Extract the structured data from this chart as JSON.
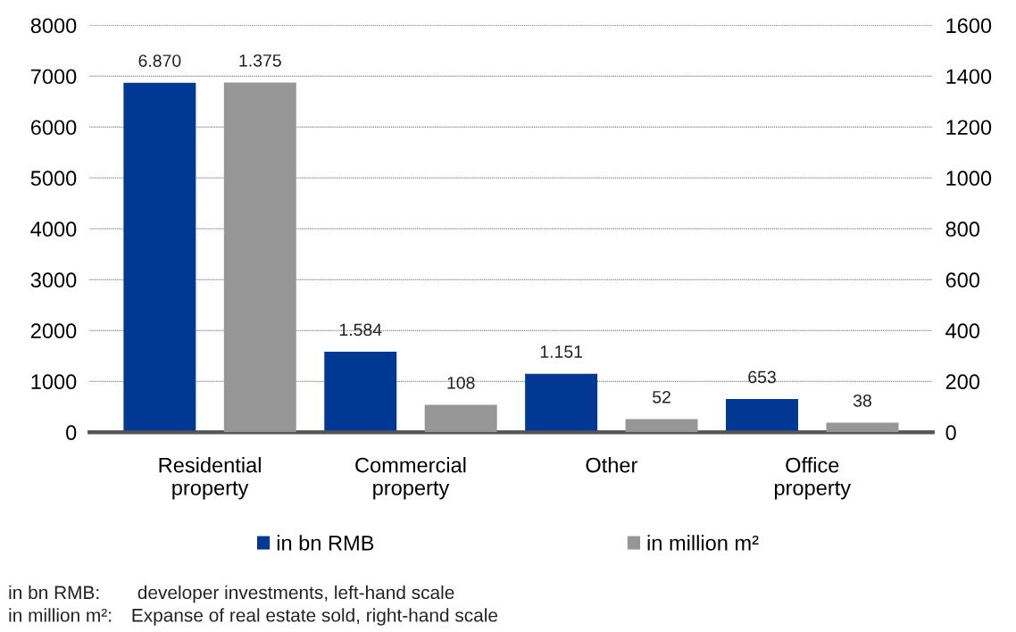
{
  "chart_data": {
    "type": "bar",
    "categories": [
      "Residential\nproperty",
      "Commercial\nproperty",
      "Other",
      "Office\nproperty"
    ],
    "series": [
      {
        "name": "in bn RMB",
        "color": "#003893",
        "values": [
          6870,
          1584,
          1151,
          653
        ],
        "value_labels": [
          "6.870",
          "1.584",
          "1.151",
          "653"
        ]
      },
      {
        "name": "in million m²",
        "color": "#969696",
        "axis": "y2",
        "values": [
          1375,
          108,
          52,
          38
        ],
        "value_labels": [
          "1.375",
          "108",
          "52",
          "38"
        ]
      }
    ],
    "ylim": [
      0,
      8000
    ],
    "yticks": [
      0,
      1000,
      2000,
      3000,
      4000,
      5000,
      6000,
      7000,
      8000
    ],
    "y2lim": [
      0,
      1600
    ],
    "y2ticks": [
      0,
      200,
      400,
      600,
      800,
      1000,
      1200,
      1400,
      1600
    ],
    "grid": "y",
    "legend": "bottom",
    "annotations": [
      "in bn RMB:  developer investments, left-hand scale",
      "in million m²: Expanse of real estate sold, right-hand scale"
    ]
  }
}
